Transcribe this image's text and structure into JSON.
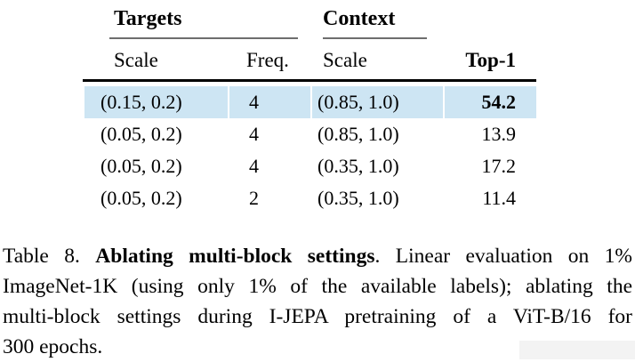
{
  "table": {
    "group_headers": [
      {
        "label": "Targets",
        "columns": [
          "Scale",
          "Freq."
        ]
      },
      {
        "label": "Context",
        "columns": [
          "Scale"
        ]
      }
    ],
    "column_headers": [
      "Scale",
      "Freq.",
      "Scale",
      "Top-1"
    ],
    "rows": [
      {
        "cells": [
          "(0.15, 0.2)",
          "4",
          "(0.85, 1.0)",
          "54.2"
        ],
        "highlighted": true
      },
      {
        "cells": [
          "(0.05, 0.2)",
          "4",
          "(0.85, 1.0)",
          "13.9"
        ],
        "highlighted": false
      },
      {
        "cells": [
          "(0.05, 0.2)",
          "4",
          "(0.35, 1.0)",
          "17.2"
        ],
        "highlighted": false
      },
      {
        "cells": [
          "(0.05, 0.2)",
          "2",
          "(0.35, 1.0)",
          "11.4"
        ],
        "highlighted": false
      }
    ],
    "best_value": "54.2"
  },
  "caption": {
    "lines": [
      {
        "normal1": "Table 8. ",
        "bold": "Ablating multi-block settings",
        "normal2": ". Linear evaluation on 1%"
      },
      {
        "text": "ImageNet-1K (using only 1% of the available labels); ablating the"
      },
      {
        "text": "multi-block settings during I-JEPA pretraining of a ViT-B/16 for"
      },
      {
        "text": "300 epochs."
      }
    ],
    "full_text": "Table 8. Ablating multi-block settings. Linear evaluation on 1% ImageNet-1K (using only 1% of the available labels); ablating the multi-block settings during I-JEPA pretraining of a ViT-B/16 for 300 epochs."
  },
  "colors": {
    "highlight_row": "#cde5f3",
    "rule_gray": "#6e6e6e",
    "rule_black": "#000000",
    "artifact": "#f3f3f3"
  }
}
